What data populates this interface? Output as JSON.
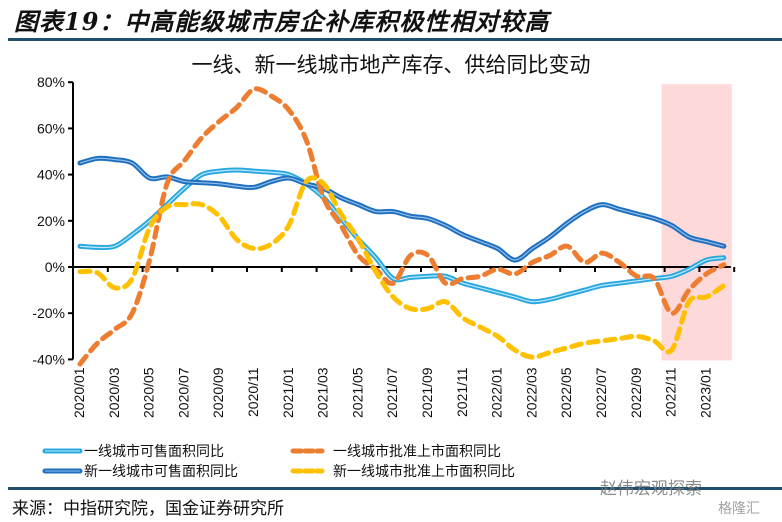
{
  "figure_title": "图表19：中高能级城市房企补库积极性相对较高",
  "source": "来源：中指研究院，国金证券研究所",
  "watermark": "赵伟宏观探索",
  "watermark2": "格隆汇",
  "chart_data": {
    "type": "line",
    "title": "一线、新一线城市地产库存、供给同比变动",
    "xlabel": "",
    "ylabel": "",
    "ylim": [
      -40,
      80
    ],
    "yticks": [
      "80%",
      "60%",
      "40%",
      "20%",
      "0%",
      "-20%",
      "-40%"
    ],
    "ytick_values": [
      80,
      60,
      40,
      20,
      0,
      -20,
      -40
    ],
    "x": [
      "2020/01",
      "2020/02",
      "2020/03",
      "2020/04",
      "2020/05",
      "2020/06",
      "2020/07",
      "2020/08",
      "2020/09",
      "2020/10",
      "2020/11",
      "2020/12",
      "2021/01",
      "2021/02",
      "2021/03",
      "2021/04",
      "2021/05",
      "2021/06",
      "2021/07",
      "2021/08",
      "2021/09",
      "2021/10",
      "2021/11",
      "2021/12",
      "2022/01",
      "2022/02",
      "2022/03",
      "2022/04",
      "2022/05",
      "2022/06",
      "2022/07",
      "2022/08",
      "2022/09",
      "2022/10",
      "2022/11",
      "2022/12",
      "2023/01",
      "2023/02"
    ],
    "xtick_labels": [
      "2020/01",
      "2020/03",
      "2020/05",
      "2020/07",
      "2020/09",
      "2020/11",
      "2021/01",
      "2021/03",
      "2021/05",
      "2021/07",
      "2021/09",
      "2021/11",
      "2022/01",
      "2022/03",
      "2022/05",
      "2022/07",
      "2022/09",
      "2022/11",
      "2023/01"
    ],
    "highlight": {
      "from": "2022/11",
      "to": "2023/02",
      "color": "#fdd9d9"
    },
    "grid": false,
    "legend_position": "bottom",
    "series": [
      {
        "name": "一线城市可售面积同比",
        "style": "solid-light",
        "color": "#29a8e0",
        "values": [
          9,
          8.5,
          9,
          14,
          20,
          27,
          34,
          40,
          41.5,
          42,
          41.5,
          41,
          40,
          36,
          30,
          21,
          12,
          4,
          -5,
          -4.5,
          -4,
          -4,
          -7,
          -9,
          -11,
          -13,
          -15,
          -14,
          -12,
          -10,
          -8,
          -7,
          -6,
          -5,
          -4,
          -1,
          3,
          4
        ]
      },
      {
        "name": "新一线城市可售面积同比",
        "style": "solid-dark",
        "color": "#1f6fbf",
        "values": [
          45,
          47,
          46.5,
          45,
          38.5,
          39,
          37,
          36.5,
          36,
          35,
          34.5,
          37,
          38.5,
          36,
          34,
          30,
          27,
          24,
          24,
          22,
          21,
          18,
          14,
          11,
          8,
          3,
          8,
          13,
          19,
          24,
          27,
          25,
          23,
          21,
          18,
          13,
          11,
          9
        ]
      },
      {
        "name": "一线城市批准上市面积同比",
        "style": "dashed",
        "color": "#ed7d31",
        "values": [
          -42,
          -33,
          -27,
          -20,
          3,
          36,
          46,
          56,
          63,
          69,
          77,
          74,
          68,
          55,
          30,
          18,
          5,
          -1,
          -7,
          5,
          5,
          -7,
          -5,
          -4,
          -1,
          -3,
          2,
          5,
          9,
          2,
          6,
          2,
          -4,
          -5,
          -20,
          -10,
          -3,
          1
        ]
      },
      {
        "name": "新一线城市批准上市面积同比",
        "style": "dashed",
        "color": "#ffc000",
        "values": [
          -2,
          -2.5,
          -9,
          -5,
          17,
          26,
          27,
          27,
          22,
          12,
          8,
          10,
          18,
          37,
          36,
          23,
          12,
          -2,
          -13,
          -18,
          -18,
          -15,
          -22,
          -26,
          -30,
          -36,
          -39,
          -37,
          -35,
          -33,
          -32,
          -31,
          -30,
          -32,
          -36,
          -15,
          -13,
          -8
        ]
      }
    ]
  }
}
